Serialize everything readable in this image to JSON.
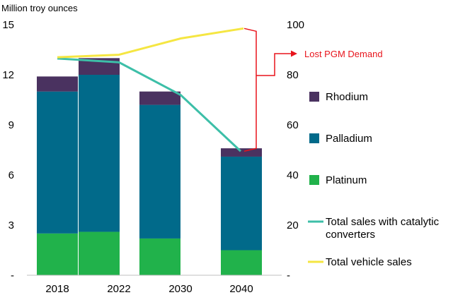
{
  "chart_data": {
    "type": "bar",
    "ylabel": "Million troy ounces",
    "categories": [
      "2018",
      "2022",
      "2030",
      "2040"
    ],
    "y_left": {
      "ticks": [
        "-",
        "3",
        "6",
        "9",
        "12",
        "15"
      ],
      "ylim": [
        0,
        15
      ]
    },
    "y_right": {
      "ticks": [
        "-",
        "20",
        "40",
        "60",
        "80",
        "100"
      ],
      "ylim": [
        0,
        100
      ]
    },
    "stacked_series": [
      {
        "name": "Platinum",
        "color": "#21b24b",
        "values": [
          2.5,
          2.6,
          2.2,
          1.5
        ]
      },
      {
        "name": "Palladium",
        "color": "#016a8a",
        "values": [
          8.5,
          9.4,
          8.0,
          5.6
        ]
      },
      {
        "name": "Rhodium",
        "color": "#4a3260",
        "values": [
          0.9,
          1.0,
          0.8,
          0.5
        ]
      }
    ],
    "line_series": [
      {
        "name": "Total sales with catalytic converters",
        "color": "#3dbfa8",
        "axis": "right",
        "values": [
          86.5,
          85,
          72,
          49.5
        ]
      },
      {
        "name": "Total vehicle sales",
        "color": "#f5e642",
        "axis": "right",
        "values": [
          87,
          88,
          94.5,
          98.5
        ]
      }
    ],
    "legend": {
      "placement": "right",
      "items": [
        {
          "label": "Rhodium",
          "color": "#4a3260",
          "shape": "square"
        },
        {
          "label": "Palladium",
          "color": "#016a8a",
          "shape": "square"
        },
        {
          "label": "Platinum",
          "color": "#21b24b",
          "shape": "square"
        },
        {
          "label": "Total sales with catalytic\nconverters",
          "color": "#3dbfa8",
          "shape": "line"
        },
        {
          "label": "Total vehicle sales",
          "color": "#f5e642",
          "shape": "line"
        }
      ]
    },
    "annotation": {
      "text": "Lost PGM Demand",
      "color": "#e8141c",
      "from_value": 98.5,
      "to_value": 49.5
    }
  }
}
